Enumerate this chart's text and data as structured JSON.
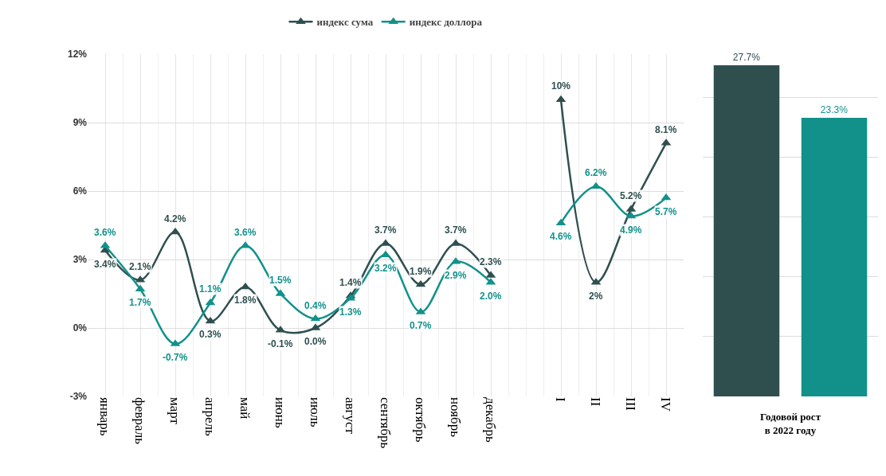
{
  "chart_data": [
    {
      "type": "line",
      "categories": [
        "январь",
        "февраль",
        "март",
        "апрель",
        "май",
        "июнь",
        "июль",
        "август",
        "сентябрь",
        "октябрь",
        "ноябрь",
        "декабрь",
        null,
        "I",
        "II",
        "III",
        "IV"
      ],
      "series": [
        {
          "name": "индекс сума",
          "color": "#2f4f4f",
          "values": [
            3.4,
            2.1,
            4.2,
            0.3,
            1.8,
            -0.1,
            0.0,
            1.4,
            3.7,
            1.9,
            3.7,
            2.3,
            null,
            10,
            2,
            5.2,
            8.1
          ],
          "value_labels": [
            "3.4%",
            "2.1%",
            "4.2%",
            "0.3%",
            "1.8%",
            "-0.1%",
            "0.0%",
            "1.4%",
            "3.7%",
            "1.9%",
            "3.7%",
            "2.3%",
            null,
            "10%",
            "2%",
            "5.2%",
            "8.1%"
          ]
        },
        {
          "name": "индекс доллора",
          "color": "#12918b",
          "values": [
            3.6,
            1.7,
            -0.7,
            1.1,
            3.6,
            1.5,
            0.4,
            1.3,
            3.2,
            0.7,
            2.9,
            2.0,
            null,
            4.6,
            6.2,
            4.9,
            5.7
          ],
          "value_labels": [
            "3.6%",
            "1.7%",
            "-0.7%",
            "1.1%",
            "3.6%",
            "1.5%",
            "0.4%",
            "1.3%",
            "3.2%",
            "0.7%",
            "2.9%",
            "2.0%",
            null,
            "4.6%",
            "6.2%",
            "4.9%",
            "5.7%"
          ]
        }
      ],
      "ylim": [
        -3,
        12
      ],
      "yticks": [
        {
          "value": -3,
          "label": "-3%"
        },
        {
          "value": 0,
          "label": "0%"
        },
        {
          "value": 3,
          "label": "3%"
        },
        {
          "value": 6,
          "label": "6%"
        },
        {
          "value": 9,
          "label": "9%"
        },
        {
          "value": 12,
          "label": "12%"
        }
      ],
      "grid": true,
      "legend": "top",
      "marker": "triangle"
    },
    {
      "type": "bar",
      "categories": [
        null,
        null
      ],
      "values": [
        27.7,
        23.3
      ],
      "colors": [
        "#2f4f4f",
        "#12918b"
      ],
      "value_labels": [
        "27.7%",
        "23.3%"
      ],
      "xlabel": "Годовой рост\nв 2022 году",
      "grid": true
    }
  ]
}
